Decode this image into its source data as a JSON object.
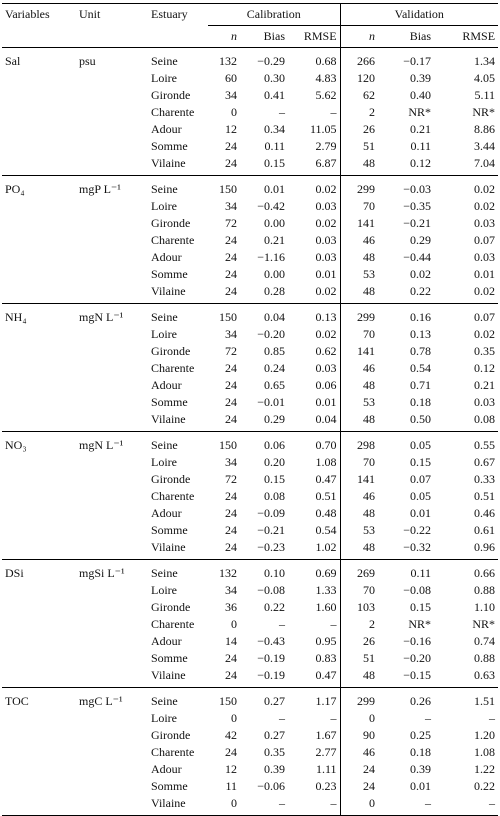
{
  "header": {
    "variables": "Variables",
    "unit": "Unit",
    "estuary": "Estuary",
    "calibration": "Calibration",
    "validation": "Validation",
    "calibration_columns": [
      "n",
      "Bias",
      "RMSE"
    ],
    "validation_columns": [
      "n",
      "Bias",
      "RMSE"
    ]
  },
  "groups": [
    {
      "variable": "Sal",
      "unit": "psu",
      "rows": [
        [
          "Seine",
          "132",
          "−0.29",
          "0.68",
          "266",
          "−0.17",
          "1.34"
        ],
        [
          "Loire",
          "60",
          "0.30",
          "4.83",
          "120",
          "0.39",
          "4.05"
        ],
        [
          "Gironde",
          "34",
          "0.41",
          "5.62",
          "62",
          "0.40",
          "5.11"
        ],
        [
          "Charente",
          "0",
          "–",
          "–",
          "2",
          "NR*",
          "NR*"
        ],
        [
          "Adour",
          "12",
          "0.34",
          "11.05",
          "26",
          "0.21",
          "8.86"
        ],
        [
          "Somme",
          "24",
          "0.11",
          "2.79",
          "51",
          "0.11",
          "3.44"
        ],
        [
          "Vilaine",
          "24",
          "0.15",
          "6.87",
          "48",
          "0.12",
          "7.04"
        ]
      ]
    },
    {
      "variable": "PO₄",
      "unit": "mgP L⁻¹",
      "rows": [
        [
          "Seine",
          "150",
          "0.01",
          "0.02",
          "299",
          "−0.03",
          "0.02"
        ],
        [
          "Loire",
          "34",
          "−0.42",
          "0.03",
          "70",
          "−0.35",
          "0.02"
        ],
        [
          "Gironde",
          "72",
          "0.00",
          "0.02",
          "141",
          "−0.21",
          "0.03"
        ],
        [
          "Charente",
          "24",
          "0.21",
          "0.03",
          "46",
          "0.29",
          "0.07"
        ],
        [
          "Adour",
          "24",
          "−1.16",
          "0.03",
          "48",
          "−0.44",
          "0.03"
        ],
        [
          "Somme",
          "24",
          "0.00",
          "0.01",
          "53",
          "0.02",
          "0.01"
        ],
        [
          "Vilaine",
          "24",
          "0.28",
          "0.02",
          "48",
          "0.22",
          "0.02"
        ]
      ]
    },
    {
      "variable": "NH₄",
      "unit": "mgN L⁻¹",
      "rows": [
        [
          "Seine",
          "150",
          "0.04",
          "0.13",
          "299",
          "0.16",
          "0.07"
        ],
        [
          "Loire",
          "34",
          "−0.20",
          "0.02",
          "70",
          "0.13",
          "0.02"
        ],
        [
          "Gironde",
          "72",
          "0.85",
          "0.62",
          "141",
          "0.78",
          "0.35"
        ],
        [
          "Charente",
          "24",
          "0.24",
          "0.03",
          "46",
          "0.54",
          "0.12"
        ],
        [
          "Adour",
          "24",
          "0.65",
          "0.06",
          "48",
          "0.71",
          "0.21"
        ],
        [
          "Somme",
          "24",
          "−0.01",
          "0.01",
          "53",
          "0.18",
          "0.03"
        ],
        [
          "Vilaine",
          "24",
          "0.29",
          "0.04",
          "48",
          "0.50",
          "0.08"
        ]
      ]
    },
    {
      "variable": "NO₃",
      "unit": "mgN L⁻¹",
      "rows": [
        [
          "Seine",
          "150",
          "0.06",
          "0.70",
          "298",
          "0.05",
          "0.55"
        ],
        [
          "Loire",
          "34",
          "0.20",
          "1.08",
          "70",
          "0.15",
          "0.67"
        ],
        [
          "Gironde",
          "72",
          "0.15",
          "0.47",
          "141",
          "0.07",
          "0.33"
        ],
        [
          "Charente",
          "24",
          "0.08",
          "0.51",
          "46",
          "0.05",
          "0.51"
        ],
        [
          "Adour",
          "24",
          "−0.09",
          "0.48",
          "48",
          "0.01",
          "0.46"
        ],
        [
          "Somme",
          "24",
          "−0.21",
          "0.54",
          "53",
          "−0.22",
          "0.61"
        ],
        [
          "Vilaine",
          "24",
          "−0.23",
          "1.02",
          "48",
          "−0.32",
          "0.96"
        ]
      ]
    },
    {
      "variable": "DSi",
      "unit": "mgSi L⁻¹",
      "rows": [
        [
          "Seine",
          "132",
          "0.10",
          "0.69",
          "269",
          "0.11",
          "0.66"
        ],
        [
          "Loire",
          "34",
          "−0.08",
          "1.33",
          "70",
          "−0.08",
          "0.88"
        ],
        [
          "Gironde",
          "36",
          "0.22",
          "1.60",
          "103",
          "0.15",
          "1.10"
        ],
        [
          "Charente",
          "0",
          "–",
          "–",
          "2",
          "NR*",
          "NR*"
        ],
        [
          "Adour",
          "14",
          "−0.43",
          "0.95",
          "26",
          "−0.16",
          "0.74"
        ],
        [
          "Somme",
          "24",
          "−0.19",
          "0.83",
          "51",
          "−0.20",
          "0.88"
        ],
        [
          "Vilaine",
          "24",
          "−0.19",
          "0.47",
          "48",
          "−0.15",
          "0.63"
        ]
      ]
    },
    {
      "variable": "TOC",
      "unit": "mgC L⁻¹",
      "rows": [
        [
          "Seine",
          "150",
          "0.27",
          "1.17",
          "299",
          "0.26",
          "1.51"
        ],
        [
          "Loire",
          "0",
          "–",
          "–",
          "0",
          "–",
          "–"
        ],
        [
          "Gironde",
          "42",
          "0.27",
          "1.67",
          "90",
          "0.25",
          "1.20"
        ],
        [
          "Charente",
          "24",
          "0.35",
          "2.77",
          "46",
          "0.18",
          "1.08"
        ],
        [
          "Adour",
          "12",
          "0.39",
          "1.11",
          "24",
          "0.39",
          "1.22"
        ],
        [
          "Somme",
          "11",
          "−0.06",
          "0.23",
          "24",
          "0.01",
          "0.22"
        ],
        [
          "Vilaine",
          "0",
          "–",
          "–",
          "0",
          "–",
          "–"
        ]
      ]
    }
  ]
}
